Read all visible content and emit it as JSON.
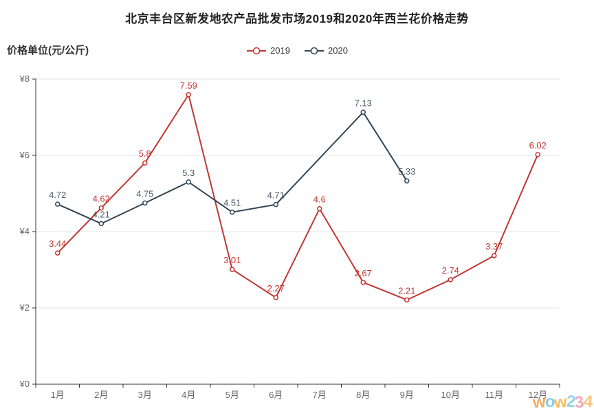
{
  "chart_data": {
    "type": "line",
    "title": "北京丰台区新发地农产品批发市场2019和2020年西兰花价格走势",
    "ylabel": "价格单位(元/公斤)",
    "xlabel": "",
    "categories": [
      "1月",
      "2月",
      "3月",
      "4月",
      "5月",
      "6月",
      "7月",
      "8月",
      "9月",
      "10月",
      "11月",
      "12月"
    ],
    "series": [
      {
        "name": "2019",
        "color": "#c23531",
        "label_color": "#c23531",
        "values": [
          3.44,
          4.62,
          5.8,
          7.59,
          3.01,
          2.27,
          4.6,
          2.67,
          2.21,
          2.74,
          3.37,
          6.02
        ],
        "labels": [
          "3.44",
          "4.62",
          "5.8",
          "7.59",
          "3.01",
          "2.27",
          "4.6",
          "2.67",
          "2.21",
          "2.74",
          "3.37",
          "6.02"
        ]
      },
      {
        "name": "2020",
        "color": "#2f4554",
        "label_color": "#4f5a66",
        "values": [
          4.72,
          4.21,
          4.75,
          5.3,
          4.51,
          4.71,
          null,
          7.13,
          5.33,
          null,
          null,
          null
        ],
        "labels": [
          "4.72",
          "4.21",
          "4.75",
          "5.3",
          "4.51",
          "4.71",
          null,
          "7.13",
          "5.33",
          null,
          null,
          null
        ]
      }
    ],
    "ylim": [
      0,
      8
    ],
    "y_tick_step": 2,
    "y_tick_labels": [
      "¥0",
      "¥2",
      "¥4",
      "¥6",
      "¥8"
    ],
    "grid": true,
    "legend_position": "top-center",
    "axis_color": "#333333",
    "grid_color": "#e6e6e6",
    "tick_text_color": "#666666"
  },
  "watermark": {
    "letters": [
      {
        "ch": "w",
        "color": "#f6a24e"
      },
      {
        "ch": "o",
        "color": "#7ec8e8"
      },
      {
        "ch": "w",
        "color": "#f9b64f"
      },
      {
        "ch": "2",
        "color": "#8ecbe8"
      },
      {
        "ch": "3",
        "color": "#f2a0b4"
      },
      {
        "ch": "4",
        "color": "#f9c06a"
      }
    ]
  }
}
